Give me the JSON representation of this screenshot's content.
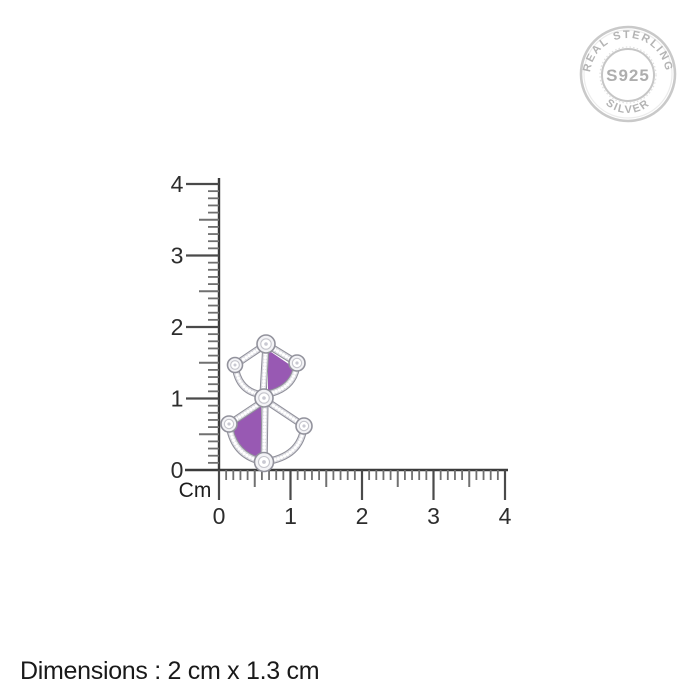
{
  "seal": {
    "top_text": "REAL STERLING",
    "center_text": "S925",
    "bottom_text": "SILVER",
    "color": "#b4b4b4"
  },
  "ruler": {
    "unit_label": "Cm",
    "vertical_tick_labels": [
      "4",
      "3",
      "2",
      "1",
      "0"
    ],
    "horizontal_tick_labels": [
      "0",
      "1",
      "2",
      "3",
      "4"
    ]
  },
  "jewelry": {
    "name": "purple-enamel-cz-studded-silver-fan-earring",
    "enamel_color": "#9859b3",
    "metal_dark": "#8f8f99",
    "metal_light": "#d9d9df",
    "bead_color": "#ffffff",
    "stone_rim_color": "#92929c",
    "stone_fill_color": "#f3f3f6"
  },
  "footer": {
    "dimensions_text": "Dimensions : 2 cm x 1.3 cm"
  }
}
